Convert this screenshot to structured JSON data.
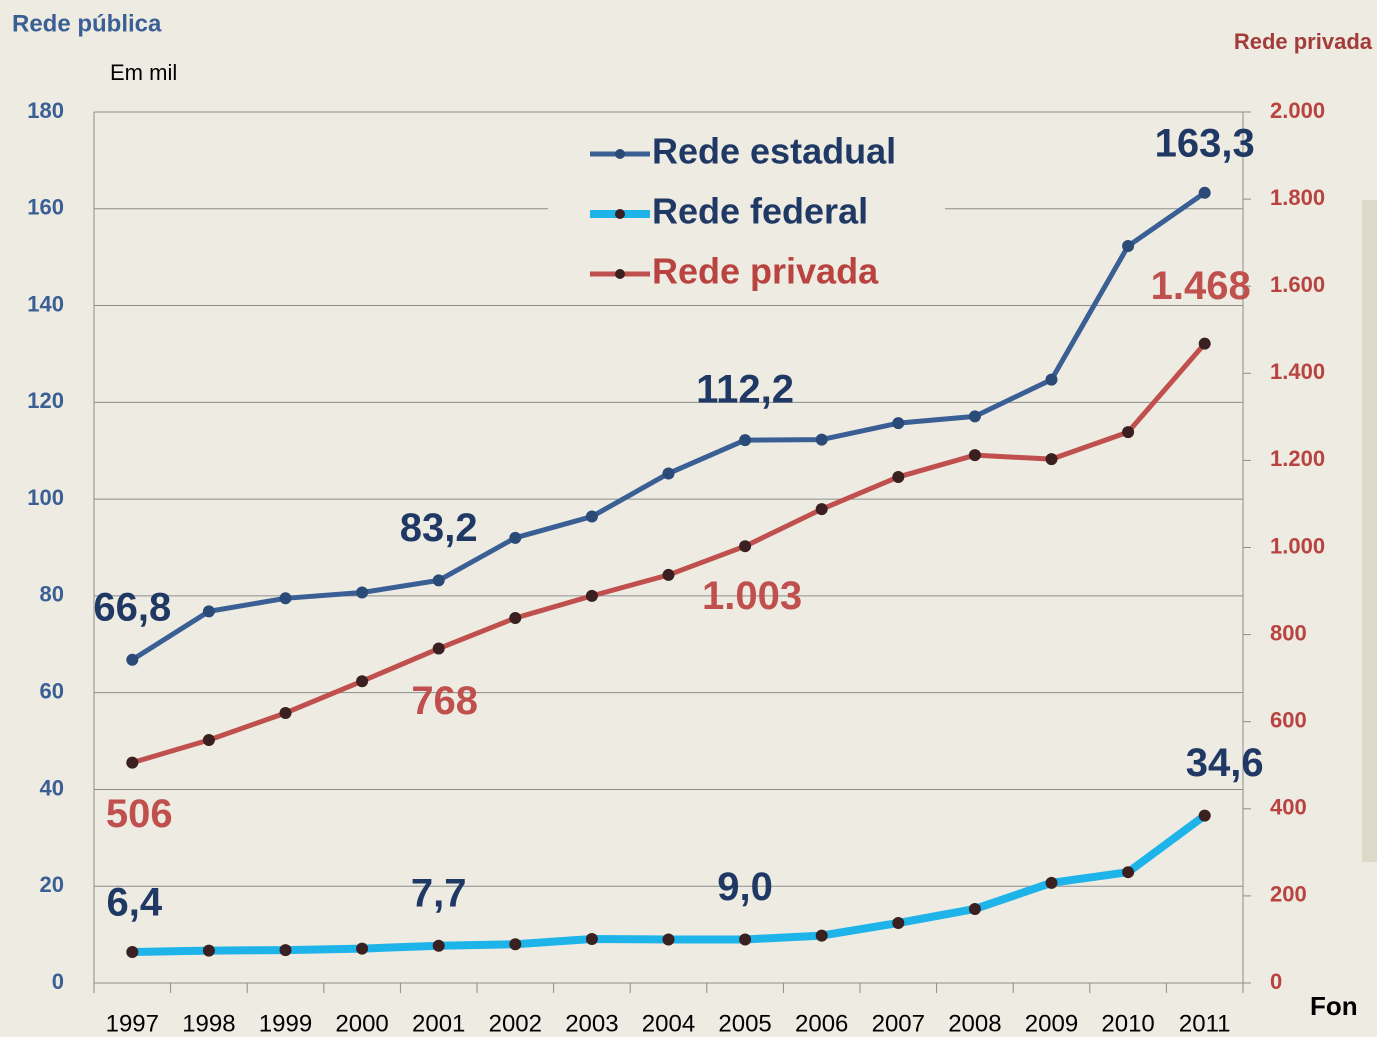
{
  "chart_data": {
    "type": "line",
    "y_axis_label": "Rede pública",
    "y2_axis_label": "Rede privada",
    "annotations": [
      "Em mil",
      "Fon"
    ],
    "categories": [
      "1997",
      "1998",
      "1999",
      "2000",
      "2001",
      "2002",
      "2003",
      "2004",
      "2005",
      "2006",
      "2007",
      "2008",
      "2009",
      "2010",
      "2011"
    ],
    "series": [
      {
        "name": "Rede estadual",
        "color": "#3a5f95",
        "axis": "y",
        "values": [
          66.8,
          76.8,
          79.5,
          80.7,
          83.2,
          92.0,
          96.4,
          105.3,
          112.2,
          112.3,
          115.7,
          117.1,
          124.7,
          152.3,
          163.3
        ],
        "value_labels": [
          "66,8",
          null,
          null,
          null,
          "83,2",
          null,
          null,
          null,
          "112,2",
          null,
          null,
          null,
          null,
          null,
          "163,3"
        ]
      },
      {
        "name": "Rede federal",
        "color": "#1eb4ea",
        "axis": "y",
        "values": [
          6.4,
          6.7,
          6.8,
          7.1,
          7.7,
          8.0,
          9.1,
          9.0,
          9.0,
          9.8,
          12.4,
          15.3,
          20.7,
          22.9,
          34.6
        ],
        "value_labels": [
          "6,4",
          null,
          null,
          null,
          "7,7",
          null,
          null,
          null,
          "9,0",
          null,
          null,
          null,
          null,
          null,
          "34,6"
        ]
      },
      {
        "name": "Rede privada",
        "color": "#c0504d",
        "axis": "y2",
        "values": [
          506,
          558,
          620,
          693,
          768,
          838,
          889,
          937,
          1003,
          1088,
          1162,
          1212,
          1203,
          1265,
          1468
        ],
        "value_labels": [
          "506",
          null,
          null,
          null,
          "768",
          null,
          null,
          null,
          "1.003",
          null,
          null,
          null,
          null,
          null,
          "1.468"
        ]
      }
    ],
    "ylim": [
      0,
      180
    ],
    "yticks": [
      0,
      20,
      40,
      60,
      80,
      100,
      120,
      140,
      160,
      180
    ],
    "y2lim": [
      0,
      2000
    ],
    "y2ticks": [
      0,
      200,
      400,
      600,
      800,
      {
        "value": 1000,
        "label": "1.000"
      },
      {
        "value": 1200,
        "label": "1.200"
      },
      {
        "value": 1400,
        "label": "1.400"
      },
      {
        "value": 1600,
        "label": "1.600"
      },
      {
        "value": 1800,
        "label": "1.800"
      },
      {
        "value": 2000,
        "label": "2.000"
      }
    ],
    "grid": true,
    "legend": "top"
  }
}
